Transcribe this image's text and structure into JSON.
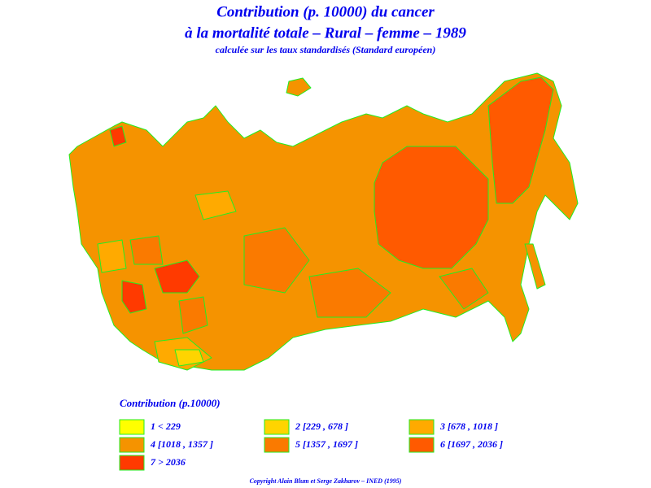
{
  "title": {
    "line1": "Contribution (p. 10000) du cancer",
    "line2": "à la mortalité totale – Rural – femme – 1989",
    "line3": "calculée sur les taux standardisés (Standard européen)"
  },
  "legend": {
    "title": "Contribution (p.10000)",
    "items": [
      {
        "label": "1 < 229",
        "color": "#ffff00"
      },
      {
        "label": "2 [229 , 678 ]",
        "color": "#ffd400"
      },
      {
        "label": "3 [678 , 1018 ]",
        "color": "#ffaa00"
      },
      {
        "label": "4 [1018 , 1357 ]",
        "color": "#f59300"
      },
      {
        "label": "5 [1357 , 1697 ]",
        "color": "#fa7a00"
      },
      {
        "label": "6 [1697 , 2036 ]",
        "color": "#ff5a00"
      },
      {
        "label": "7 > 2036",
        "color": "#ff3a00"
      }
    ]
  },
  "copyright": "Copyright Alain Blum et Serge Zakharov – INED (1995)"
}
